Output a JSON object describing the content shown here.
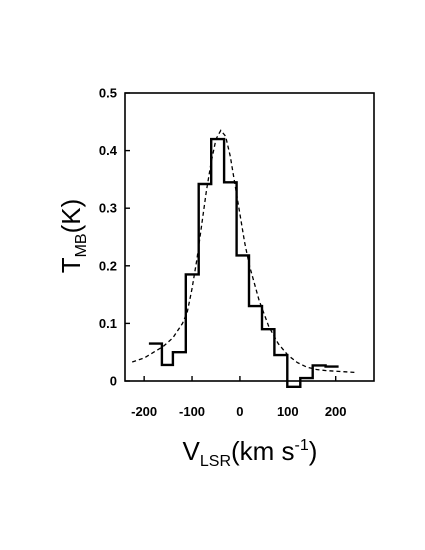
{
  "chart_data": {
    "type": "line",
    "xlabel": {
      "main": "V",
      "sub": "LSR",
      "rest": "(km s",
      "sup": "-1",
      "close": ")"
    },
    "ylabel": {
      "main": "T",
      "sub": "MB",
      "rest": "(K)"
    },
    "xlim": [
      -240,
      280
    ],
    "ylim": [
      0,
      0.5
    ],
    "xticks": [
      -200,
      -100,
      0,
      100,
      200
    ],
    "xtick_labels": [
      "-200",
      "-100",
      "0",
      "100",
      "200"
    ],
    "yticks": [
      0,
      0.1,
      0.2,
      0.3,
      0.4,
      0.5
    ],
    "ytick_labels": [
      "0",
      "0.1",
      "0.2",
      "0.3",
      "0.4",
      "0.5"
    ],
    "grid": false,
    "series": [
      {
        "style": "solid-histogram",
        "bins": [
          {
            "x0": -190,
            "x1": -163,
            "y": 0.065
          },
          {
            "x0": -163,
            "x1": -140,
            "y": 0.028
          },
          {
            "x0": -140,
            "x1": -113,
            "y": 0.05
          },
          {
            "x0": -113,
            "x1": -86,
            "y": 0.185
          },
          {
            "x0": -86,
            "x1": -60,
            "y": 0.342
          },
          {
            "x0": -60,
            "x1": -33,
            "y": 0.42
          },
          {
            "x0": -33,
            "x1": -7,
            "y": 0.345
          },
          {
            "x0": -7,
            "x1": 19,
            "y": 0.218
          },
          {
            "x0": 19,
            "x1": 46,
            "y": 0.13
          },
          {
            "x0": 46,
            "x1": 72,
            "y": 0.09
          },
          {
            "x0": 72,
            "x1": 99,
            "y": 0.045
          },
          {
            "x0": 99,
            "x1": 126,
            "y": -0.01
          },
          {
            "x0": 126,
            "x1": 152,
            "y": 0.005
          },
          {
            "x0": 152,
            "x1": 179,
            "y": 0.027
          },
          {
            "x0": 179,
            "x1": 206,
            "y": 0.025
          }
        ]
      },
      {
        "style": "dashed-fit",
        "x": [
          -225,
          -200,
          -180,
          -160,
          -140,
          -120,
          -110,
          -100,
          -90,
          -80,
          -70,
          -60,
          -50,
          -40,
          -30,
          -20,
          -10,
          0,
          10,
          20,
          40,
          60,
          80,
          100,
          120,
          140,
          160,
          180,
          200,
          220,
          240
        ],
        "y": [
          0.033,
          0.04,
          0.05,
          0.06,
          0.075,
          0.1,
          0.12,
          0.16,
          0.21,
          0.27,
          0.33,
          0.38,
          0.42,
          0.435,
          0.425,
          0.39,
          0.34,
          0.29,
          0.24,
          0.2,
          0.14,
          0.095,
          0.065,
          0.045,
          0.032,
          0.024,
          0.02,
          0.018,
          0.017,
          0.016,
          0.015
        ]
      }
    ]
  }
}
